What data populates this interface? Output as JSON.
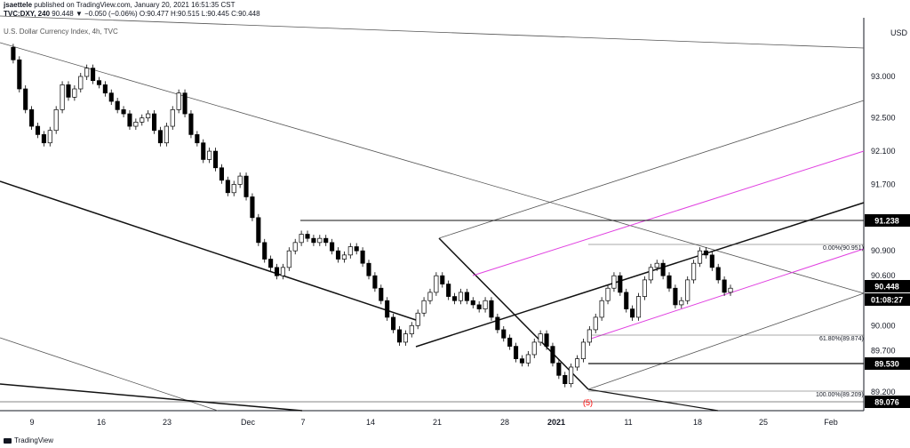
{
  "header": {
    "publisher": "jsaettele",
    "published_on": "published on TradingView.com, January 20, 2021 16:51:35 CST",
    "symbol": "TVC:DXY, 240",
    "quote": "90.448 ▼ −0.050 (−0.06%) O:90.477 H:90.515 L:90.445 C:90.448",
    "legend": "U.S. Dollar Currency Index, 4h, TVC"
  },
  "footer": {
    "brand": "TradingView"
  },
  "chart_data": {
    "type": "candlestick",
    "currency": "USD",
    "y_ticks": [
      "93.000",
      "92.500",
      "92.100",
      "91.700",
      "90.900",
      "90.600",
      "90.000",
      "89.700",
      "89.200"
    ],
    "x_ticks": [
      "9",
      "16",
      "23",
      "Dec",
      "7",
      "14",
      "21",
      "28",
      "2021",
      "11",
      "18",
      "25",
      "Feb"
    ],
    "price_badges": [
      {
        "label": "91.238",
        "style": "black"
      },
      {
        "label": "90.448",
        "style": "black"
      },
      {
        "label": "01:08:27",
        "style": "black"
      },
      {
        "label": "89.530",
        "style": "black"
      },
      {
        "label": "89.076",
        "style": "black"
      }
    ],
    "fib_labels": [
      "0.00%(90.951)",
      "61.80%(89.874)",
      "100.00%(89.209)"
    ],
    "wave_label": "(5)",
    "colors": {
      "candle": "#000000",
      "trend": "#000000",
      "channel": "#e040e0",
      "wave_label": "#ff0000",
      "axis": "#131722"
    },
    "series": [
      {
        "name": "DXY 4h closes",
        "values": [
          93.35,
          93.2,
          92.85,
          92.6,
          92.4,
          92.3,
          92.2,
          92.35,
          92.6,
          92.9,
          92.75,
          92.85,
          93.0,
          93.1,
          92.95,
          92.9,
          92.8,
          92.7,
          92.6,
          92.55,
          92.4,
          92.45,
          92.5,
          92.55,
          92.35,
          92.2,
          92.4,
          92.6,
          92.8,
          92.55,
          92.3,
          92.2,
          92.0,
          92.1,
          91.9,
          91.75,
          91.6,
          91.7,
          91.8,
          91.55,
          91.3,
          91.0,
          90.8,
          90.7,
          90.6,
          90.7,
          90.9,
          91.0,
          91.1,
          91.05,
          91.0,
          91.05,
          91.0,
          90.9,
          90.8,
          90.85,
          90.95,
          90.9,
          90.75,
          90.6,
          90.45,
          90.3,
          90.1,
          89.95,
          89.8,
          89.9,
          90.0,
          90.15,
          90.3,
          90.4,
          90.6,
          90.5,
          90.35,
          90.3,
          90.4,
          90.3,
          90.25,
          90.2,
          90.3,
          90.1,
          89.95,
          89.85,
          89.75,
          89.6,
          89.55,
          89.65,
          89.8,
          89.9,
          89.75,
          89.55,
          89.4,
          89.3,
          89.5,
          89.6,
          89.8,
          89.95,
          90.1,
          90.3,
          90.45,
          90.6,
          90.4,
          90.2,
          90.1,
          90.35,
          90.55,
          90.7,
          90.75,
          90.6,
          90.45,
          90.25,
          90.3,
          90.55,
          90.75,
          90.9,
          90.85,
          90.7,
          90.55,
          90.4,
          90.45
        ]
      }
    ]
  }
}
